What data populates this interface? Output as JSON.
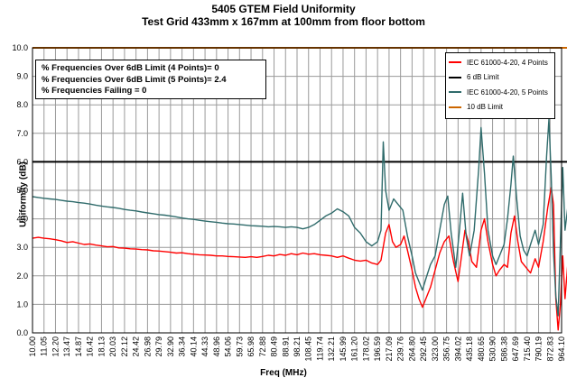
{
  "chart_data": {
    "type": "line",
    "title": "5405 GTEM Field Uniformity",
    "subtitle": "Test Grid 433mm x 167mm at 100mm from floor bottom",
    "xlabel": "Freq (MHz)",
    "ylabel": "Uniformity (dB)",
    "ylim": [
      0,
      10
    ],
    "yticks": [
      "0.0",
      "1.0",
      "2.0",
      "3.0",
      "4.0",
      "5.0",
      "6.0",
      "7.0",
      "8.0",
      "9.0",
      "10.0"
    ],
    "xtick_labels": [
      "10.00",
      "11.05",
      "12.20",
      "13.47",
      "14.87",
      "16.42",
      "18.13",
      "20.03",
      "22.12",
      "24.42",
      "26.98",
      "29.79",
      "32.90",
      "36.34",
      "40.14",
      "44.33",
      "48.96",
      "54.06",
      "59.73",
      "65.98",
      "72.88",
      "80.49",
      "88.91",
      "98.21",
      "108.45",
      "119.74",
      "132.21",
      "145.99",
      "161.20",
      "178.02",
      "196.59",
      "217.09",
      "239.76",
      "264.80",
      "292.45",
      "323.00",
      "356.75",
      "394.02",
      "435.18",
      "480.65",
      "530.90",
      "586.38",
      "647.69",
      "715.40",
      "790.19",
      "872.83",
      "964.10"
    ],
    "grid": "on",
    "series": [
      {
        "name": "IEC 61000-4-20, 4 Points",
        "color": "#ff0000",
        "points": [
          [
            0,
            3.32
          ],
          [
            0.5,
            3.35
          ],
          [
            1,
            3.32
          ],
          [
            1.5,
            3.3
          ],
          [
            2,
            3.27
          ],
          [
            2.5,
            3.23
          ],
          [
            3,
            3.17
          ],
          [
            3.5,
            3.2
          ],
          [
            4,
            3.15
          ],
          [
            4.5,
            3.1
          ],
          [
            5,
            3.12
          ],
          [
            5.5,
            3.08
          ],
          [
            6,
            3.05
          ],
          [
            6.5,
            3.02
          ],
          [
            7,
            3.03
          ],
          [
            7.5,
            2.98
          ],
          [
            8,
            2.97
          ],
          [
            8.5,
            2.95
          ],
          [
            9,
            2.94
          ],
          [
            9.5,
            2.92
          ],
          [
            10,
            2.91
          ],
          [
            10.5,
            2.88
          ],
          [
            11,
            2.87
          ],
          [
            11.5,
            2.85
          ],
          [
            12,
            2.83
          ],
          [
            12.5,
            2.8
          ],
          [
            13,
            2.81
          ],
          [
            13.5,
            2.78
          ],
          [
            14,
            2.76
          ],
          [
            14.5,
            2.74
          ],
          [
            15,
            2.73
          ],
          [
            15.5,
            2.72
          ],
          [
            16,
            2.7
          ],
          [
            16.5,
            2.7
          ],
          [
            17,
            2.68
          ],
          [
            17.5,
            2.67
          ],
          [
            18,
            2.66
          ],
          [
            18.5,
            2.65
          ],
          [
            19,
            2.67
          ],
          [
            19.5,
            2.65
          ],
          [
            20,
            2.68
          ],
          [
            20.5,
            2.72
          ],
          [
            21,
            2.7
          ],
          [
            21.5,
            2.75
          ],
          [
            22,
            2.72
          ],
          [
            22.5,
            2.78
          ],
          [
            23,
            2.74
          ],
          [
            23.5,
            2.8
          ],
          [
            24,
            2.76
          ],
          [
            24.5,
            2.78
          ],
          [
            25,
            2.74
          ],
          [
            25.5,
            2.72
          ],
          [
            26,
            2.7
          ],
          [
            26.5,
            2.65
          ],
          [
            27,
            2.7
          ],
          [
            27.5,
            2.62
          ],
          [
            28,
            2.55
          ],
          [
            28.5,
            2.52
          ],
          [
            29,
            2.55
          ],
          [
            29.5,
            2.45
          ],
          [
            30,
            2.4
          ],
          [
            30.3,
            2.55
          ],
          [
            30.7,
            3.5
          ],
          [
            31,
            3.8
          ],
          [
            31.3,
            3.2
          ],
          [
            31.6,
            3.0
          ],
          [
            32,
            3.1
          ],
          [
            32.3,
            3.4
          ],
          [
            32.6,
            2.9
          ],
          [
            33,
            2.2
          ],
          [
            33.3,
            1.6
          ],
          [
            33.6,
            1.2
          ],
          [
            33.9,
            0.9
          ],
          [
            34.2,
            1.2
          ],
          [
            34.6,
            1.6
          ],
          [
            35,
            2.2
          ],
          [
            35.4,
            2.8
          ],
          [
            35.8,
            3.2
          ],
          [
            36.2,
            3.4
          ],
          [
            36.6,
            2.5
          ],
          [
            37,
            1.8
          ],
          [
            37.3,
            2.7
          ],
          [
            37.6,
            3.6
          ],
          [
            37.9,
            3.2
          ],
          [
            38.2,
            2.5
          ],
          [
            38.6,
            2.3
          ],
          [
            39,
            3.6
          ],
          [
            39.3,
            4.0
          ],
          [
            39.6,
            3.2
          ],
          [
            40,
            2.4
          ],
          [
            40.3,
            2.0
          ],
          [
            40.6,
            2.2
          ],
          [
            41,
            2.4
          ],
          [
            41.3,
            2.3
          ],
          [
            41.6,
            3.5
          ],
          [
            41.9,
            4.1
          ],
          [
            42.2,
            3.2
          ],
          [
            42.5,
            2.5
          ],
          [
            42.9,
            2.3
          ],
          [
            43.3,
            2.1
          ],
          [
            43.7,
            2.6
          ],
          [
            44,
            2.3
          ],
          [
            44.4,
            3.2
          ],
          [
            44.8,
            4.4
          ],
          [
            45.1,
            5.1
          ],
          [
            45.3,
            4.5
          ],
          [
            45.5,
            1.2
          ],
          [
            45.7,
            0.1
          ],
          [
            45.9,
            1.0
          ],
          [
            46.1,
            2.7
          ],
          [
            46.3,
            1.2
          ],
          [
            46.6,
            2.7
          ],
          [
            46.8,
            2.8
          ]
        ]
      },
      {
        "name": "6 dB Limit",
        "color": "#000000",
        "points": [
          [
            0,
            6
          ],
          [
            46.8,
            6
          ]
        ]
      },
      {
        "name": "IEC 61000-4-20, 5 Points",
        "color": "#2f6b6b",
        "points": [
          [
            0,
            4.78
          ],
          [
            0.5,
            4.75
          ],
          [
            1,
            4.72
          ],
          [
            1.5,
            4.7
          ],
          [
            2,
            4.68
          ],
          [
            2.5,
            4.65
          ],
          [
            3,
            4.62
          ],
          [
            3.5,
            4.6
          ],
          [
            4,
            4.57
          ],
          [
            4.5,
            4.55
          ],
          [
            5,
            4.52
          ],
          [
            5.5,
            4.48
          ],
          [
            6,
            4.45
          ],
          [
            6.5,
            4.42
          ],
          [
            7,
            4.4
          ],
          [
            7.5,
            4.37
          ],
          [
            8,
            4.33
          ],
          [
            8.5,
            4.3
          ],
          [
            9,
            4.28
          ],
          [
            9.5,
            4.24
          ],
          [
            10,
            4.21
          ],
          [
            10.5,
            4.18
          ],
          [
            11,
            4.15
          ],
          [
            11.5,
            4.13
          ],
          [
            12,
            4.1
          ],
          [
            12.5,
            4.07
          ],
          [
            13,
            4.03
          ],
          [
            13.5,
            4.0
          ],
          [
            14,
            3.98
          ],
          [
            14.5,
            3.95
          ],
          [
            15,
            3.92
          ],
          [
            15.5,
            3.9
          ],
          [
            16,
            3.88
          ],
          [
            16.5,
            3.85
          ],
          [
            17,
            3.83
          ],
          [
            17.5,
            3.82
          ],
          [
            18,
            3.8
          ],
          [
            18.5,
            3.78
          ],
          [
            19,
            3.76
          ],
          [
            19.5,
            3.75
          ],
          [
            20,
            3.74
          ],
          [
            20.5,
            3.72
          ],
          [
            21,
            3.73
          ],
          [
            21.5,
            3.72
          ],
          [
            22,
            3.7
          ],
          [
            22.5,
            3.72
          ],
          [
            23,
            3.7
          ],
          [
            23.5,
            3.65
          ],
          [
            24,
            3.7
          ],
          [
            24.5,
            3.8
          ],
          [
            25,
            3.95
          ],
          [
            25.5,
            4.1
          ],
          [
            26,
            4.2
          ],
          [
            26.5,
            4.35
          ],
          [
            27,
            4.25
          ],
          [
            27.5,
            4.1
          ],
          [
            28,
            3.7
          ],
          [
            28.5,
            3.5
          ],
          [
            29,
            3.2
          ],
          [
            29.5,
            3.05
          ],
          [
            30,
            3.2
          ],
          [
            30.3,
            3.6
          ],
          [
            30.5,
            6.7
          ],
          [
            30.7,
            5.0
          ],
          [
            31,
            4.3
          ],
          [
            31.4,
            4.7
          ],
          [
            31.8,
            4.5
          ],
          [
            32.2,
            4.3
          ],
          [
            32.6,
            3.4
          ],
          [
            33,
            2.7
          ],
          [
            33.3,
            2.1
          ],
          [
            33.6,
            1.8
          ],
          [
            33.9,
            1.5
          ],
          [
            34.2,
            1.9
          ],
          [
            34.6,
            2.4
          ],
          [
            35,
            2.7
          ],
          [
            35.4,
            3.6
          ],
          [
            35.8,
            4.5
          ],
          [
            36.1,
            4.8
          ],
          [
            36.4,
            3.5
          ],
          [
            36.8,
            2.3
          ],
          [
            37.1,
            3.5
          ],
          [
            37.4,
            4.9
          ],
          [
            37.7,
            3.4
          ],
          [
            38,
            2.7
          ],
          [
            38.4,
            3.6
          ],
          [
            38.8,
            5.8
          ],
          [
            39,
            7.2
          ],
          [
            39.3,
            5.6
          ],
          [
            39.6,
            3.6
          ],
          [
            40,
            2.7
          ],
          [
            40.3,
            2.4
          ],
          [
            40.7,
            2.8
          ],
          [
            41,
            3.1
          ],
          [
            41.3,
            4.0
          ],
          [
            41.6,
            5.2
          ],
          [
            41.8,
            6.2
          ],
          [
            42.1,
            4.7
          ],
          [
            42.4,
            3.4
          ],
          [
            42.7,
            2.9
          ],
          [
            43,
            2.7
          ],
          [
            43.3,
            3.1
          ],
          [
            43.7,
            3.6
          ],
          [
            44,
            3.1
          ],
          [
            44.4,
            3.8
          ],
          [
            44.7,
            6.2
          ],
          [
            44.9,
            7.5
          ],
          [
            45.1,
            5.5
          ],
          [
            45.3,
            2.8
          ],
          [
            45.5,
            1.3
          ],
          [
            45.7,
            0.6
          ],
          [
            45.9,
            3.2
          ],
          [
            46.1,
            5.8
          ],
          [
            46.3,
            3.6
          ],
          [
            46.6,
            4.6
          ],
          [
            46.8,
            4.8
          ]
        ]
      },
      {
        "name": "10 dB Limit",
        "color": "#cc6600",
        "points": [
          [
            0,
            10
          ],
          [
            46.8,
            10
          ]
        ]
      }
    ],
    "legend": "top-right"
  },
  "stats_box": {
    "line1": "% Frequencies  Over 6dB Limit (4 Points)= 0",
    "line2": "% Frequencies  Over 6dB Limit (5 Points)= 2.4",
    "line3": "% Frequencies  Failing = 0"
  }
}
